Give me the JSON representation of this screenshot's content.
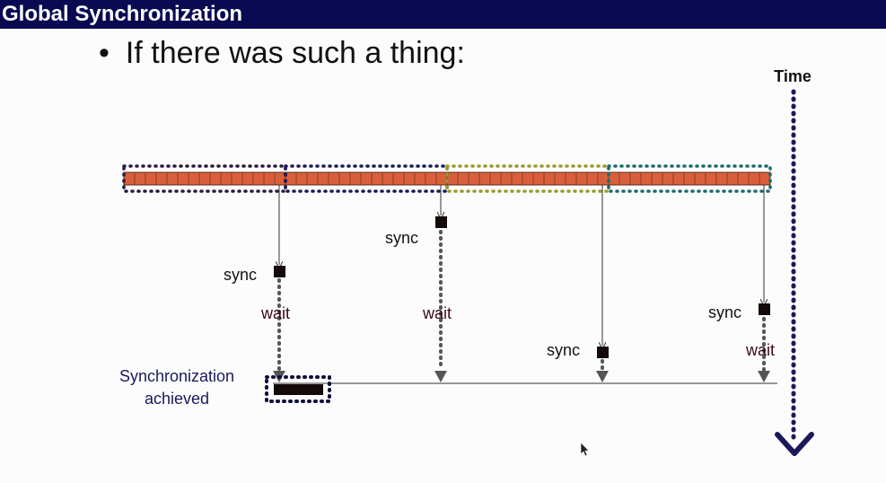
{
  "slide": {
    "title": "Global Synchronization",
    "bullet": "If there was such a thing:"
  },
  "diagram": {
    "time_label": "Time",
    "sync_label": "sync",
    "wait_label": "wait",
    "achieved_label_line1": "Synchronization",
    "achieved_label_line2": "achieved",
    "threads": [
      {
        "id": "t1",
        "dotted_color": "#2a1a3a",
        "sync_order": 2,
        "has_wait": true
      },
      {
        "id": "t2",
        "dotted_color": "#1a1a55",
        "sync_order": 1,
        "has_wait": true
      },
      {
        "id": "t3",
        "dotted_color": "#9a9a2a",
        "sync_order": 4,
        "has_wait": false
      },
      {
        "id": "t4",
        "dotted_color": "#1e6a6a",
        "sync_order": 3,
        "has_wait": true
      }
    ],
    "colors": {
      "work_bar": "#d95f3b",
      "sync_box": "#140a0a",
      "wait_text": "#3a0a14",
      "time_arrow": "#1a1a5a",
      "achieved_text": "#1a1a5a",
      "wait_dots": "#555555"
    }
  }
}
